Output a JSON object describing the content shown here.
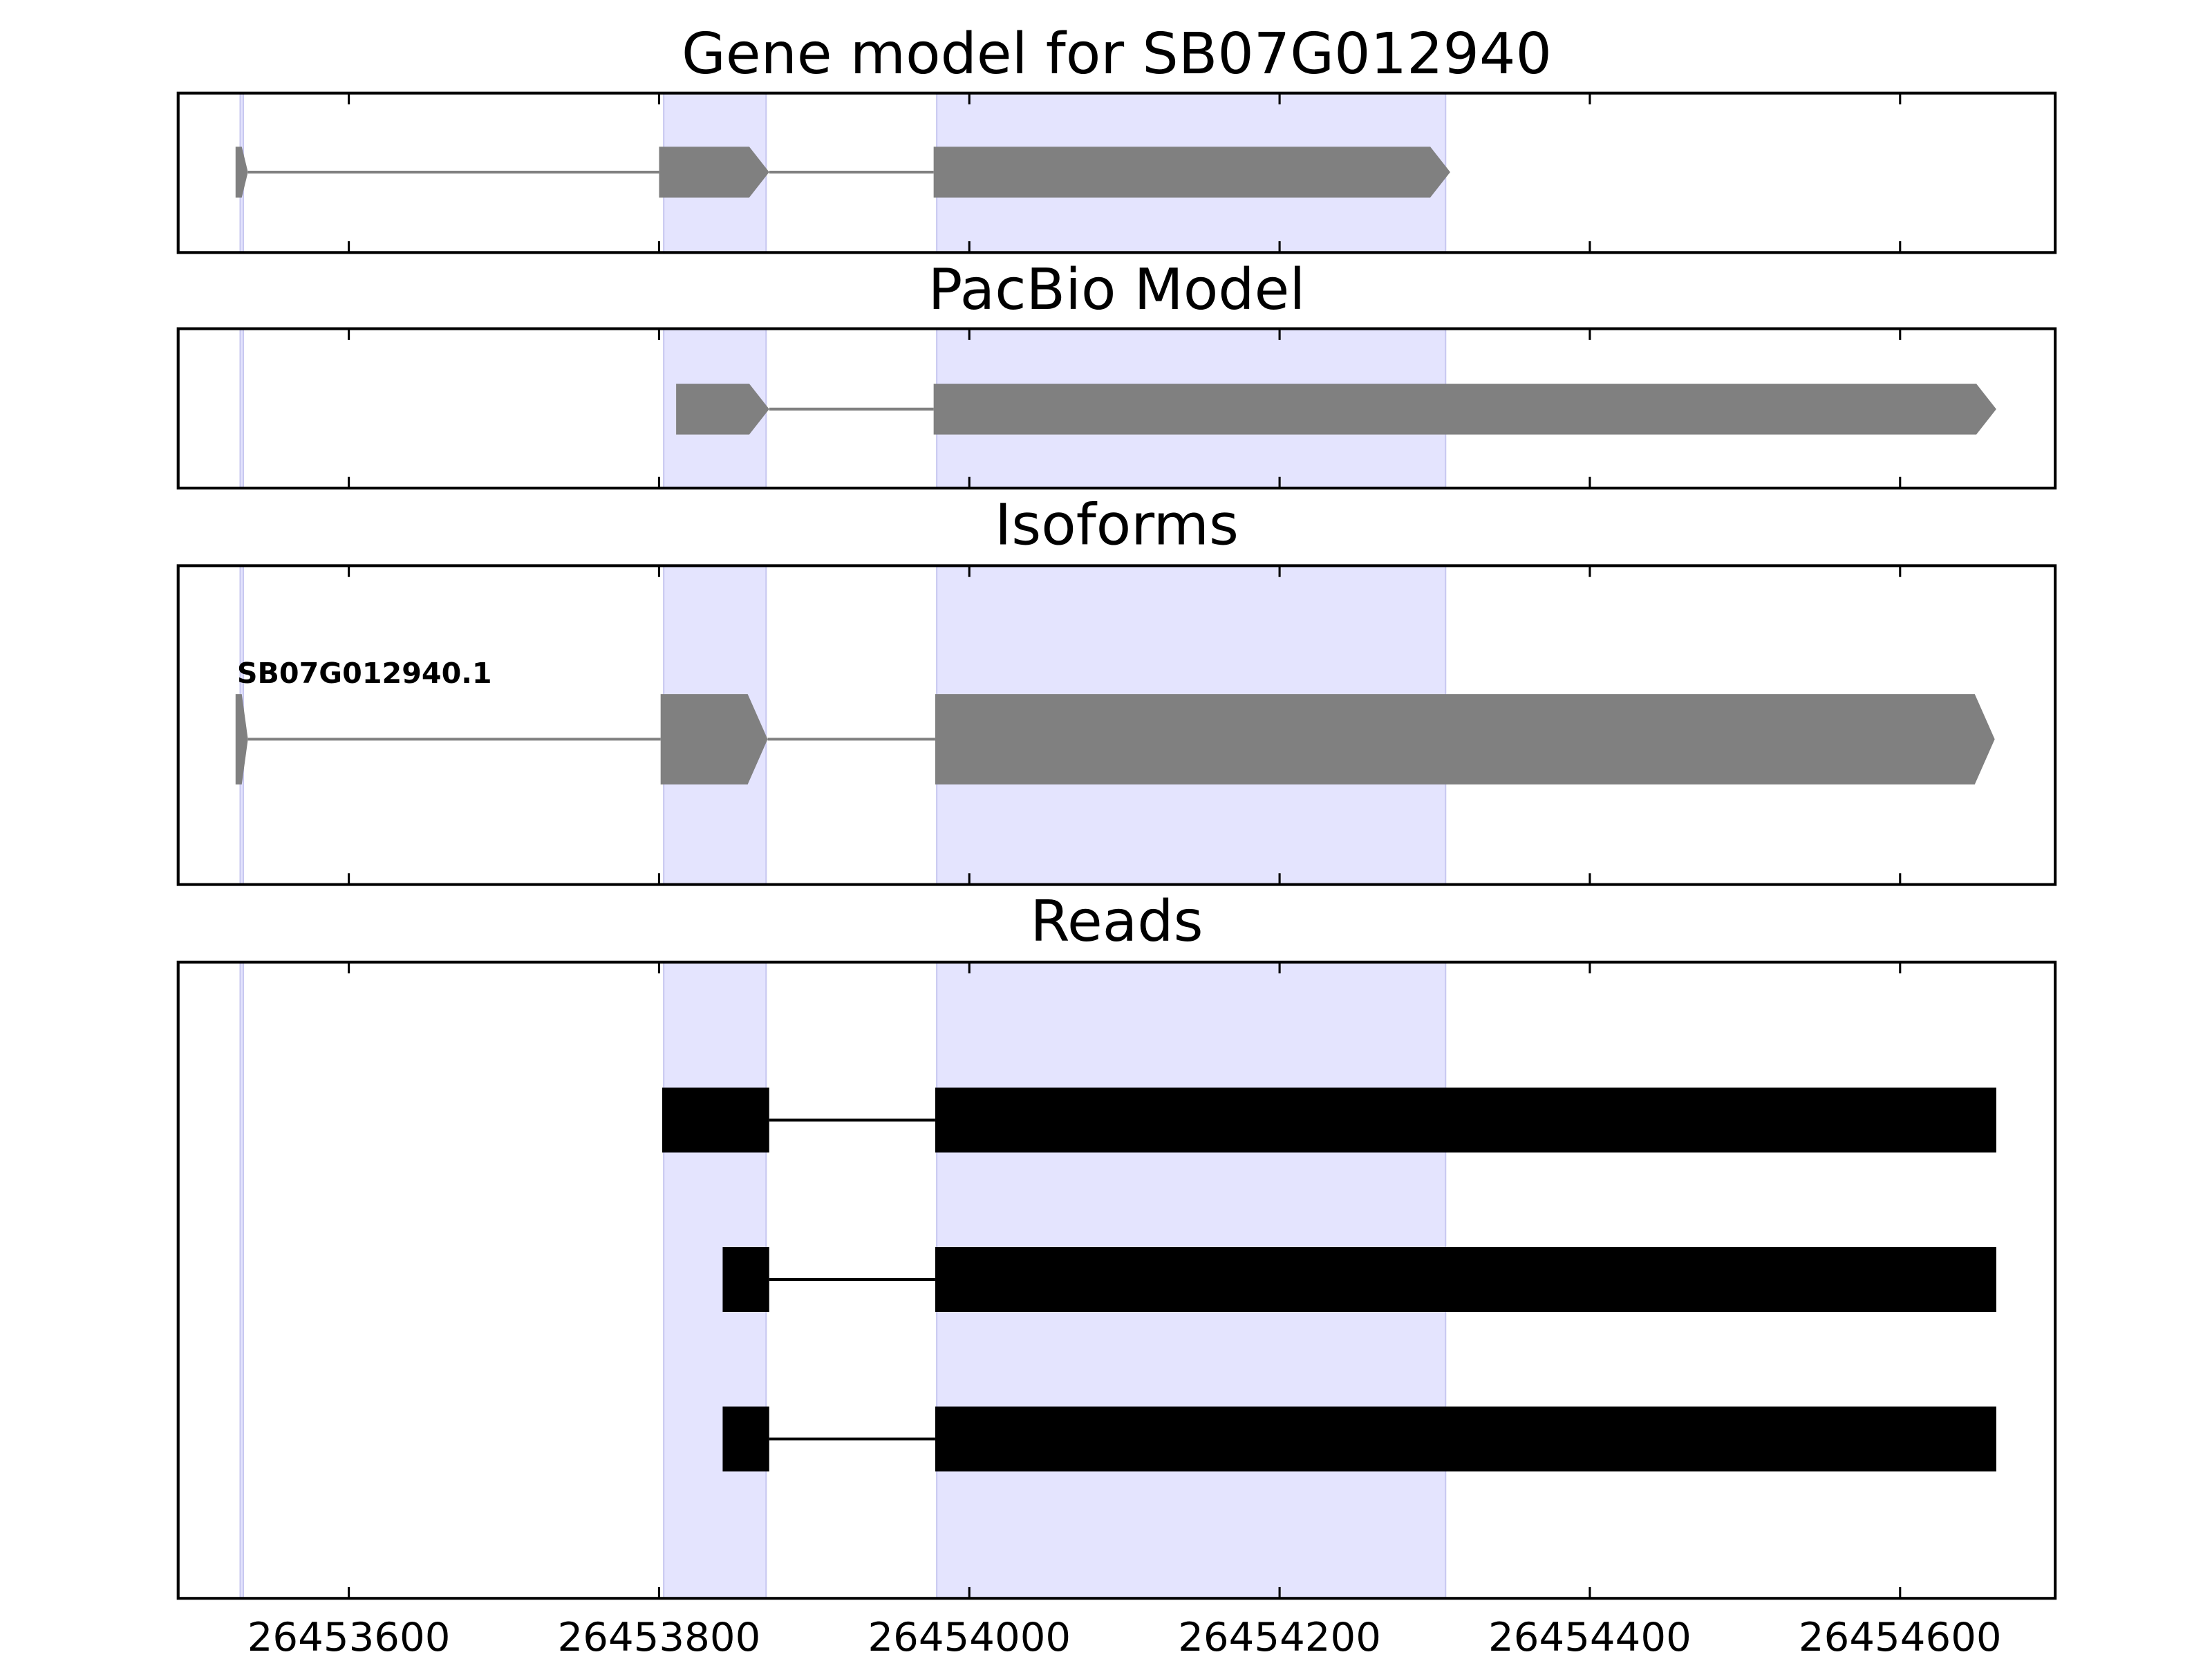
{
  "chart_data": [
    {
      "type": "gene-track",
      "title": "Gene model for SB07G012940",
      "xlim": [
        26453490,
        26454700
      ],
      "highlights": [
        [
          26453530,
          26453532
        ],
        [
          26453803,
          26453869
        ],
        [
          26453979,
          26454307
        ]
      ],
      "exon_style": "arrow",
      "color": "#808080",
      "tracks": [
        {
          "exons": [
            [
              26453527,
              26453535
            ],
            [
              26453800,
              26453871
            ],
            [
              26453977,
              26454310
            ]
          ]
        }
      ]
    },
    {
      "type": "gene-track",
      "title": "PacBio Model",
      "xlim": [
        26453490,
        26454700
      ],
      "highlights": [
        [
          26453530,
          26453532
        ],
        [
          26453803,
          26453869
        ],
        [
          26453979,
          26454307
        ]
      ],
      "exon_style": "arrow",
      "color": "#808080",
      "tracks": [
        {
          "exons": [
            [
              26453811,
              26453871
            ],
            [
              26453977,
              26454662
            ]
          ]
        }
      ]
    },
    {
      "type": "gene-track",
      "title": "Isoforms",
      "xlim": [
        26453490,
        26454700
      ],
      "highlights": [
        [
          26453530,
          26453532
        ],
        [
          26453803,
          26453869
        ],
        [
          26453979,
          26454307
        ]
      ],
      "exon_style": "arrow",
      "color": "#808080",
      "tracks": [
        {
          "name": "SB07G012940.1",
          "exons": [
            [
              26453527,
              26453535
            ],
            [
              26453801,
              26453870
            ],
            [
              26453978,
              26454661
            ]
          ]
        }
      ]
    },
    {
      "type": "gene-track",
      "title": "Reads",
      "xlim": [
        26453490,
        26454700
      ],
      "highlights": [
        [
          26453530,
          26453532
        ],
        [
          26453803,
          26453869
        ],
        [
          26453979,
          26454307
        ]
      ],
      "exon_style": "box",
      "color": "#000000",
      "tracks": [
        {
          "exons": [
            [
              26453802,
              26453871
            ],
            [
              26453978,
              26454662
            ]
          ]
        },
        {
          "exons": [
            [
              26453841,
              26453871
            ],
            [
              26453978,
              26454662
            ]
          ]
        },
        {
          "exons": [
            [
              26453841,
              26453871
            ],
            [
              26453978,
              26454662
            ]
          ]
        }
      ],
      "xticks": [
        26453600,
        26453800,
        26454000,
        26454200,
        26454400,
        26454600
      ]
    }
  ]
}
